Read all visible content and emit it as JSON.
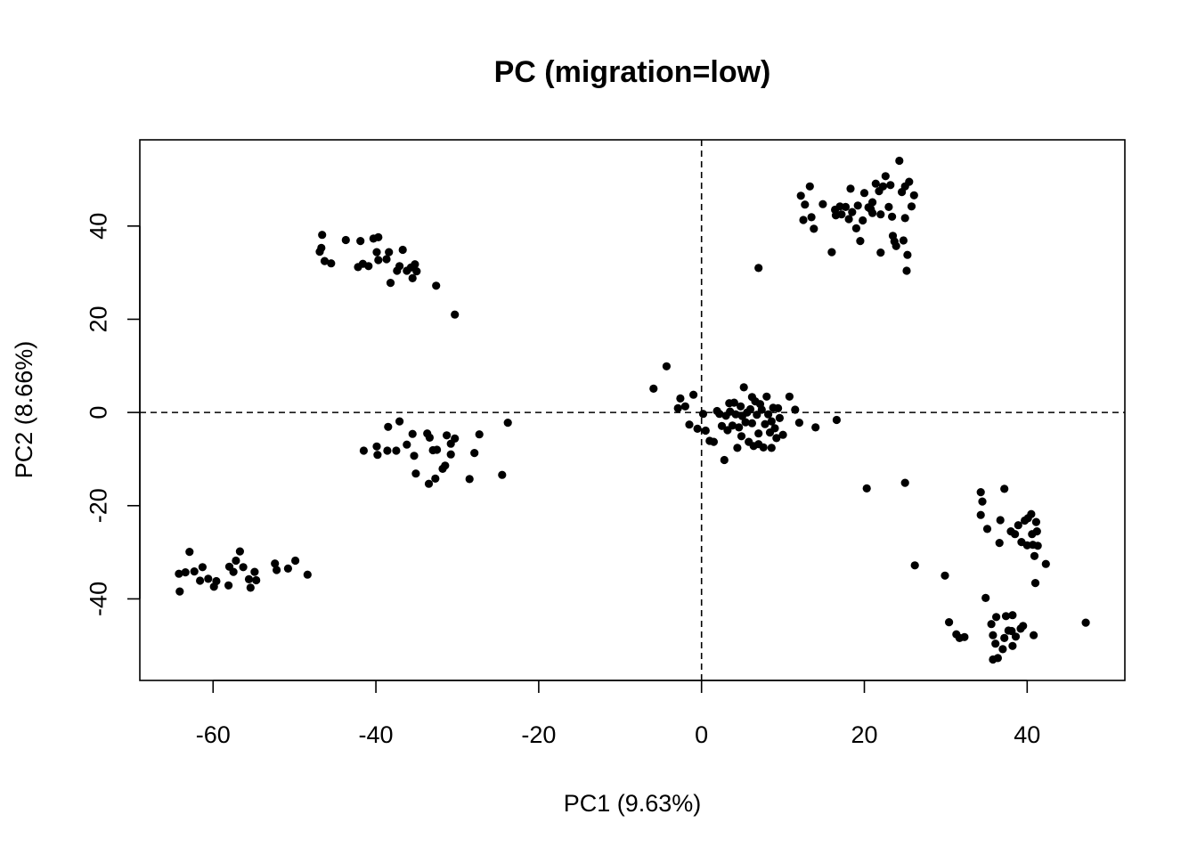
{
  "chart_data": {
    "type": "scatter",
    "title": "PC (migration=low)",
    "xlabel": "PC1 (9.63%)",
    "ylabel": "PC2 (8.66%)",
    "xlim": [
      -69,
      52
    ],
    "ylim": [
      -57.5,
      58.5
    ],
    "xticks": [
      -60,
      -40,
      -20,
      0,
      20,
      40
    ],
    "yticks": [
      -40,
      -20,
      0,
      20,
      40
    ],
    "xtick_labels": [
      "-60",
      "-40",
      "-20",
      "0",
      "20",
      "40"
    ],
    "ytick_labels": [
      "-40",
      "-20",
      "0",
      "20",
      "40"
    ],
    "reference_lines": {
      "x": 0,
      "y": 0,
      "style": "dashed"
    },
    "grid": false,
    "marker_color": "#000000",
    "series": [
      {
        "points": [
          [
            -46.6,
            38.1
          ],
          [
            -46.7,
            35.3
          ],
          [
            -46.9,
            34.5
          ],
          [
            -46.3,
            32.5
          ],
          [
            -45.5,
            32.0
          ],
          [
            -43.7,
            37.0
          ],
          [
            -41.9,
            36.8
          ],
          [
            -39.7,
            37.6
          ],
          [
            -40.3,
            37.3
          ],
          [
            -41.6,
            31.9
          ],
          [
            -42.2,
            31.2
          ],
          [
            -40.9,
            31.4
          ],
          [
            -39.9,
            34.4
          ],
          [
            -39.7,
            32.7
          ],
          [
            -38.4,
            34.4
          ],
          [
            -38.2,
            27.8
          ],
          [
            -37.4,
            30.4
          ],
          [
            -37.1,
            31.4
          ],
          [
            -36.7,
            34.9
          ],
          [
            -36.2,
            30.4
          ],
          [
            -35.7,
            31.1
          ],
          [
            -35.5,
            28.8
          ],
          [
            -35.2,
            31.8
          ],
          [
            -35.0,
            30.3
          ],
          [
            -38.7,
            32.9
          ],
          [
            -32.6,
            27.2
          ],
          [
            -30.3,
            21.0
          ],
          [
            -41.5,
            -8.2
          ],
          [
            -39.9,
            -7.3
          ],
          [
            -39.8,
            -9.1
          ],
          [
            -38.6,
            -8.2
          ],
          [
            -38.5,
            -3.1
          ],
          [
            -37.5,
            -8.2
          ],
          [
            -37.1,
            -1.9
          ],
          [
            -36.2,
            -6.9
          ],
          [
            -35.5,
            -4.6
          ],
          [
            -35.3,
            -9.3
          ],
          [
            -35.1,
            -13.1
          ],
          [
            -33.7,
            -4.5
          ],
          [
            -33.4,
            -5.4
          ],
          [
            -33.0,
            -8.1
          ],
          [
            -32.5,
            -8.0
          ],
          [
            -31.8,
            -12.1
          ],
          [
            -33.5,
            -15.3
          ],
          [
            -32.7,
            -14.2
          ],
          [
            -31.3,
            -4.9
          ],
          [
            -30.8,
            -6.7
          ],
          [
            -30.3,
            -5.6
          ],
          [
            -31.5,
            -11.4
          ],
          [
            -30.8,
            -9.0
          ],
          [
            -28.5,
            -14.3
          ],
          [
            -27.9,
            -8.7
          ],
          [
            -27.3,
            -4.7
          ],
          [
            -24.5,
            -13.4
          ],
          [
            -23.8,
            -2.2
          ],
          [
            -64.1,
            -38.4
          ],
          [
            -63.4,
            -34.3
          ],
          [
            -62.9,
            -29.9
          ],
          [
            -62.3,
            -34.1
          ],
          [
            -61.6,
            -36.1
          ],
          [
            -61.3,
            -33.2
          ],
          [
            -60.6,
            -35.7
          ],
          [
            -59.9,
            -37.4
          ],
          [
            -59.6,
            -36.2
          ],
          [
            -58.1,
            -37.1
          ],
          [
            -58.0,
            -33.1
          ],
          [
            -57.5,
            -34.2
          ],
          [
            -57.2,
            -31.8
          ],
          [
            -56.7,
            -29.8
          ],
          [
            -56.3,
            -33.2
          ],
          [
            -55.6,
            -35.8
          ],
          [
            -55.4,
            -37.6
          ],
          [
            -54.9,
            -34.2
          ],
          [
            -54.7,
            -36.0
          ],
          [
            -52.4,
            -32.4
          ],
          [
            -52.2,
            -33.8
          ],
          [
            -50.8,
            -33.5
          ],
          [
            -49.9,
            -31.8
          ],
          [
            -48.4,
            -34.8
          ],
          [
            -64.2,
            -34.6
          ],
          [
            12.2,
            46.5
          ],
          [
            12.7,
            44.6
          ],
          [
            13.3,
            48.5
          ],
          [
            12.5,
            41.3
          ],
          [
            13.5,
            41.9
          ],
          [
            13.8,
            39.4
          ],
          [
            14.9,
            44.7
          ],
          [
            16.0,
            34.4
          ],
          [
            16.4,
            43.5
          ],
          [
            16.5,
            42.3
          ],
          [
            17.0,
            44.2
          ],
          [
            17.2,
            42.5
          ],
          [
            17.7,
            44.1
          ],
          [
            18.1,
            41.5
          ],
          [
            18.3,
            48.0
          ],
          [
            18.5,
            43.0
          ],
          [
            19.2,
            44.4
          ],
          [
            19.0,
            39.5
          ],
          [
            19.5,
            36.8
          ],
          [
            19.8,
            41.2
          ],
          [
            20.0,
            47.1
          ],
          [
            20.5,
            44.0
          ],
          [
            21.0,
            45.1
          ],
          [
            21.0,
            42.8
          ],
          [
            21.4,
            49.1
          ],
          [
            21.8,
            47.5
          ],
          [
            22.0,
            42.5
          ],
          [
            22.3,
            48.5
          ],
          [
            22.6,
            50.7
          ],
          [
            23.0,
            44.1
          ],
          [
            23.2,
            48.8
          ],
          [
            23.4,
            42.0
          ],
          [
            23.5,
            37.9
          ],
          [
            23.7,
            36.7
          ],
          [
            23.9,
            35.7
          ],
          [
            24.3,
            54.0
          ],
          [
            24.6,
            47.3
          ],
          [
            24.8,
            36.9
          ],
          [
            25.0,
            41.7
          ],
          [
            25.3,
            33.8
          ],
          [
            25.5,
            49.5
          ],
          [
            25.8,
            44.2
          ],
          [
            26.1,
            46.6
          ],
          [
            25.2,
            30.4
          ],
          [
            22.0,
            34.3
          ],
          [
            7.0,
            31.0
          ],
          [
            25.0,
            48.5
          ],
          [
            20.8,
            43.6
          ],
          [
            -5.9,
            5.1
          ],
          [
            -4.3,
            9.9
          ],
          [
            -2.9,
            0.9
          ],
          [
            -2.6,
            3.0
          ],
          [
            -2.0,
            1.3
          ],
          [
            -1.5,
            -2.6
          ],
          [
            -1.0,
            3.8
          ],
          [
            -0.5,
            -3.5
          ],
          [
            0.2,
            -0.3
          ],
          [
            0.5,
            -3.9
          ],
          [
            1.0,
            -6.1
          ],
          [
            1.5,
            -6.3
          ],
          [
            1.9,
            0.3
          ],
          [
            2.2,
            -0.3
          ],
          [
            2.5,
            -2.9
          ],
          [
            2.8,
            -10.2
          ],
          [
            3.0,
            -0.7
          ],
          [
            3.2,
            -3.8
          ],
          [
            3.5,
            0.2
          ],
          [
            3.8,
            -2.8
          ],
          [
            4.0,
            2.1
          ],
          [
            4.2,
            -0.4
          ],
          [
            4.4,
            -7.6
          ],
          [
            4.6,
            -3.2
          ],
          [
            4.8,
            1.3
          ],
          [
            5.0,
            -0.8
          ],
          [
            5.2,
            5.4
          ],
          [
            5.4,
            -2.1
          ],
          [
            5.6,
            0.0
          ],
          [
            5.8,
            -6.3
          ],
          [
            6.0,
            0.7
          ],
          [
            6.2,
            -2.3
          ],
          [
            6.4,
            -7.2
          ],
          [
            6.6,
            2.4
          ],
          [
            6.8,
            -0.5
          ],
          [
            7.0,
            -4.5
          ],
          [
            7.2,
            1.8
          ],
          [
            7.4,
            0.6
          ],
          [
            7.6,
            -7.5
          ],
          [
            7.8,
            -2.5
          ],
          [
            8.0,
            3.4
          ],
          [
            8.2,
            -0.4
          ],
          [
            8.4,
            -4.3
          ],
          [
            8.6,
            -1.9
          ],
          [
            8.8,
            1.0
          ],
          [
            9.0,
            -3.4
          ],
          [
            9.2,
            -5.5
          ],
          [
            9.4,
            0.9
          ],
          [
            9.6,
            -1.2
          ],
          [
            10.0,
            -4.8
          ],
          [
            10.8,
            3.4
          ],
          [
            11.5,
            0.6
          ],
          [
            12.0,
            -2.2
          ],
          [
            8.6,
            -7.6
          ],
          [
            7.0,
            -6.8
          ],
          [
            14.0,
            -3.2
          ],
          [
            16.6,
            -1.6
          ],
          [
            6.2,
            3.3
          ],
          [
            3.4,
            2.0
          ],
          [
            4.9,
            -5.1
          ]
        ]
      },
      {
        "points": [
          [
            20.3,
            -16.3
          ],
          [
            25.0,
            -15.1
          ],
          [
            26.2,
            -32.8
          ],
          [
            29.9,
            -35.0
          ],
          [
            30.4,
            -45.0
          ],
          [
            31.3,
            -47.6
          ],
          [
            31.7,
            -48.4
          ],
          [
            32.3,
            -48.2
          ],
          [
            34.3,
            -17.1
          ],
          [
            34.3,
            -22.0
          ],
          [
            34.5,
            -19.1
          ],
          [
            34.9,
            -39.8
          ],
          [
            35.1,
            -25.0
          ],
          [
            35.6,
            -45.4
          ],
          [
            35.8,
            -47.8
          ],
          [
            35.8,
            -53.0
          ],
          [
            36.1,
            -49.6
          ],
          [
            36.2,
            -43.9
          ],
          [
            36.4,
            -52.7
          ],
          [
            36.6,
            -28.0
          ],
          [
            36.7,
            -23.1
          ],
          [
            37.0,
            -50.8
          ],
          [
            37.2,
            -16.4
          ],
          [
            37.2,
            -48.4
          ],
          [
            37.4,
            -43.7
          ],
          [
            37.7,
            -46.8
          ],
          [
            38.0,
            -25.5
          ],
          [
            38.2,
            -43.5
          ],
          [
            38.2,
            -50.1
          ],
          [
            38.5,
            -26.1
          ],
          [
            38.6,
            -48.1
          ],
          [
            38.9,
            -24.2
          ],
          [
            39.2,
            -46.4
          ],
          [
            39.3,
            -27.8
          ],
          [
            39.5,
            -45.8
          ],
          [
            39.7,
            -23.2
          ],
          [
            40.0,
            -28.5
          ],
          [
            40.1,
            -22.7
          ],
          [
            40.5,
            -21.8
          ],
          [
            40.6,
            -26.1
          ],
          [
            40.7,
            -28.4
          ],
          [
            40.9,
            -30.8
          ],
          [
            41.1,
            -23.5
          ],
          [
            41.2,
            -25.5
          ],
          [
            41.3,
            -28.6
          ],
          [
            40.8,
            -47.8
          ],
          [
            42.3,
            -32.5
          ],
          [
            47.2,
            -45.1
          ],
          [
            41.0,
            -36.6
          ],
          [
            38.1,
            -46.9
          ]
        ]
      }
    ]
  }
}
